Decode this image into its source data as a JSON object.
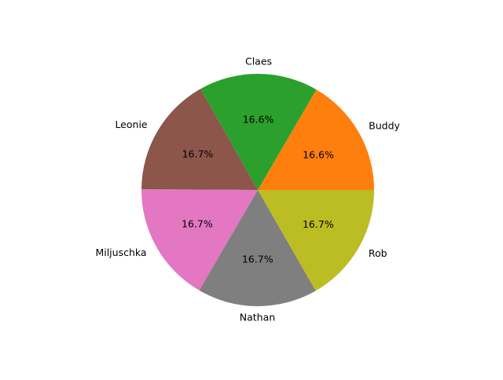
{
  "chart_data": {
    "type": "pie",
    "start_angle_deg": 0,
    "direction": "counterclockwise",
    "slices": [
      {
        "label": "Buddy",
        "value": 16.6,
        "pct_label": "16.6%",
        "color": "#ff7f0e"
      },
      {
        "label": "Claes",
        "value": 16.6,
        "pct_label": "16.6%",
        "color": "#2ca02c"
      },
      {
        "label": "Leonie",
        "value": 16.7,
        "pct_label": "16.7%",
        "color": "#8c564b"
      },
      {
        "label": "Miljuschka",
        "value": 16.7,
        "pct_label": "16.7%",
        "color": "#e377c2"
      },
      {
        "label": "Nathan",
        "value": 16.7,
        "pct_label": "16.7%",
        "color": "#7f7f7f"
      },
      {
        "label": "Rob",
        "value": 16.7,
        "pct_label": "16.7%",
        "color": "#bcbd22"
      }
    ]
  }
}
